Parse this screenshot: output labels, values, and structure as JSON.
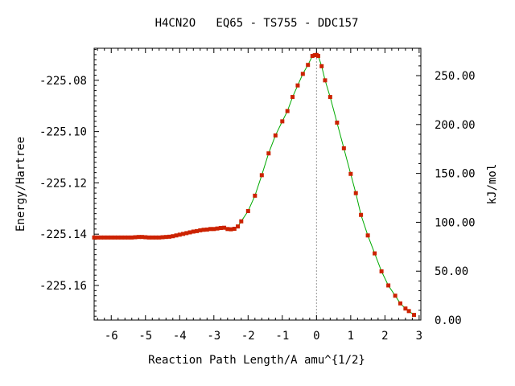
{
  "chart_data": {
    "type": "line",
    "title": "H4CN2O   EQ65 - TS755 - DDC157",
    "xlabel": "Reaction Path Length/A amu^{1/2}",
    "ylabel": "Energy/Hartree",
    "y2label": "kJ/mol",
    "xlim": [
      -6.5,
      3.05
    ],
    "ylim": [
      -225.1735,
      -225.0675
    ],
    "y2lim": [
      0,
      278
    ],
    "x_ticks": [
      -6,
      -5,
      -4,
      -3,
      -2,
      -1,
      0,
      1,
      2,
      3
    ],
    "x_tick_labels": [
      "-6",
      "-5",
      "-4",
      "-3",
      "-2",
      "-1",
      "0",
      "1",
      "2",
      "3"
    ],
    "y_ticks": [
      -225.08,
      -225.1,
      -225.12,
      -225.14,
      -225.16
    ],
    "y_tick_labels": [
      "-225.08",
      "-225.10",
      "-225.12",
      "-225.14",
      "-225.16"
    ],
    "y2_ticks": [
      250,
      200,
      150,
      100,
      50,
      0
    ],
    "y2_tick_labels": [
      "250.00",
      "200.00",
      "150.00",
      "100.00",
      "50.00",
      "0.00"
    ],
    "ts_marker_x": 0,
    "grid": false,
    "line_color": "#00aa00",
    "marker_color": "#cc2200",
    "series": [
      {
        "x": [
          -6.5,
          -6.4,
          -6.3,
          -6.2,
          -6.1,
          -6.0,
          -5.9,
          -5.8,
          -5.7,
          -5.6,
          -5.5,
          -5.4,
          -5.3,
          -5.2,
          -5.1,
          -5.0,
          -4.9,
          -4.8,
          -4.7,
          -4.6,
          -4.5,
          -4.4,
          -4.3,
          -4.2,
          -4.1,
          -4.0,
          -3.9,
          -3.8,
          -3.7,
          -3.6,
          -3.5,
          -3.4,
          -3.3,
          -3.2,
          -3.1,
          -3.0,
          -2.9,
          -2.8,
          -2.7,
          -2.6,
          -2.5,
          -2.4,
          -2.3,
          -2.2,
          -2.0,
          -1.8,
          -1.6,
          -1.4,
          -1.2,
          -1.0,
          -0.85,
          -0.7,
          -0.55,
          -0.4,
          -0.25,
          -0.12,
          -0.05,
          0.0,
          0.05,
          0.15,
          0.25,
          0.4,
          0.6,
          0.8,
          1.0,
          1.15,
          1.3,
          1.5,
          1.7,
          1.9,
          2.1,
          2.3,
          2.45,
          2.6,
          2.7,
          2.85
        ],
        "y": [
          -225.1413,
          -225.1413,
          -225.1413,
          -225.1413,
          -225.1413,
          -225.1413,
          -225.1413,
          -225.1413,
          -225.1413,
          -225.1413,
          -225.1413,
          -225.1413,
          -225.1412,
          -225.1411,
          -225.1411,
          -225.1412,
          -225.1413,
          -225.1413,
          -225.1413,
          -225.1413,
          -225.1412,
          -225.1411,
          -225.141,
          -225.1408,
          -225.1405,
          -225.1402,
          -225.1399,
          -225.1396,
          -225.1393,
          -225.139,
          -225.1388,
          -225.1385,
          -225.1383,
          -225.1382,
          -225.138,
          -225.138,
          -225.1378,
          -225.1376,
          -225.1375,
          -225.138,
          -225.1381,
          -225.1379,
          -225.137,
          -225.135,
          -225.131,
          -225.125,
          -225.117,
          -225.1085,
          -225.1015,
          -225.096,
          -225.092,
          -225.0865,
          -225.082,
          -225.0775,
          -225.074,
          -225.0705,
          -225.0702,
          -225.0701,
          -225.0705,
          -225.0745,
          -225.08,
          -225.0865,
          -225.0965,
          -225.1065,
          -225.1165,
          -225.124,
          -225.1325,
          -225.1405,
          -225.1475,
          -225.1545,
          -225.16,
          -225.164,
          -225.167,
          -225.169,
          -225.17,
          -225.1715
        ]
      }
    ]
  }
}
